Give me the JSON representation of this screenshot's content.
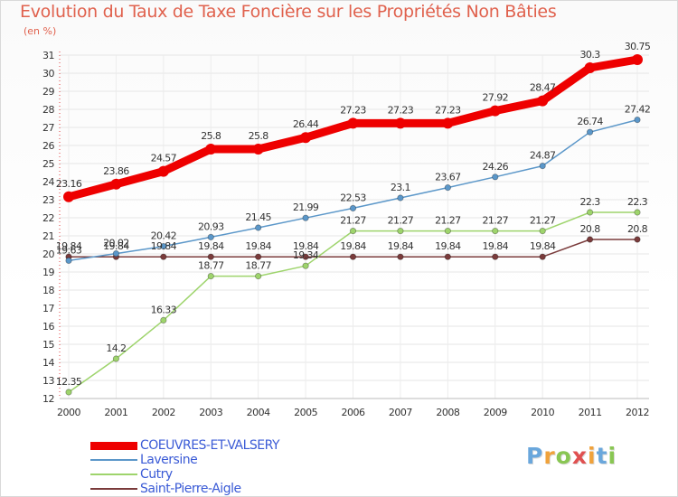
{
  "title": "Evolution du Taux de Taxe Foncière sur les Propriétés Non Bâties",
  "unit_label": "(en %)",
  "logo": {
    "text": "Proxiti",
    "letters": [
      "P",
      "r",
      "o",
      "x",
      "i",
      "t",
      "i"
    ],
    "colors": [
      "#6aa7dc",
      "#f0a23b",
      "#89c653",
      "#e05050",
      "#f0a23b",
      "#6aa7dc",
      "#89c653"
    ]
  },
  "chart_data": {
    "type": "line",
    "title": "Evolution du Taux de Taxe Foncière sur les Propriétés Non Bâties",
    "ylabel": "(en %)",
    "xlabel": "",
    "categories": [
      "2000",
      "2001",
      "2002",
      "2003",
      "2004",
      "2005",
      "2006",
      "2007",
      "2008",
      "2009",
      "2010",
      "2011",
      "2012"
    ],
    "ylim": [
      12,
      31
    ],
    "yticks": [
      12,
      13,
      14,
      15,
      16,
      17,
      18,
      19,
      20,
      21,
      22,
      23,
      24,
      25,
      26,
      27,
      28,
      29,
      30,
      31
    ],
    "grid": true,
    "series": [
      {
        "name": "COEUVRES-ET-VALSERY",
        "color": "#ee0000",
        "weight": "bold",
        "values": [
          23.16,
          23.86,
          24.57,
          25.8,
          25.8,
          26.44,
          27.23,
          27.23,
          27.23,
          27.92,
          28.47,
          30.3,
          30.75
        ],
        "labels": [
          "23.16",
          "23.86",
          "24.57",
          "25.8",
          "25.8",
          "26.44",
          "27.23",
          "27.23",
          "27.23",
          "27.92",
          "28.47",
          "30.3",
          "30.75"
        ]
      },
      {
        "name": "Laversine",
        "color": "#5b97c9",
        "weight": "thin",
        "values": [
          19.63,
          20.02,
          20.42,
          20.93,
          21.45,
          21.99,
          22.53,
          23.1,
          23.67,
          24.26,
          24.87,
          26.74,
          27.42
        ],
        "labels": [
          "19.63",
          "20.02",
          "20.42",
          "20.93",
          "21.45",
          "21.99",
          "22.53",
          "23.1",
          "23.67",
          "24.26",
          "24.87",
          "26.74",
          "27.42"
        ]
      },
      {
        "name": "Cutry",
        "color": "#9ed46c",
        "weight": "thin",
        "values": [
          12.35,
          14.2,
          16.33,
          18.77,
          18.77,
          19.34,
          21.27,
          21.27,
          21.27,
          21.27,
          21.27,
          22.3,
          22.3
        ],
        "labels": [
          "12.35",
          "14.2",
          "16.33",
          "18.77",
          "18.77",
          "19.34",
          "21.27",
          "21.27",
          "21.27",
          "21.27",
          "21.27",
          "22.3",
          "22.3"
        ]
      },
      {
        "name": "Saint-Pierre-Aigle",
        "color": "#7a3b3b",
        "weight": "thin",
        "values": [
          19.84,
          19.84,
          19.84,
          19.84,
          19.84,
          19.84,
          19.84,
          19.84,
          19.84,
          19.84,
          19.84,
          20.8,
          20.8
        ],
        "labels": [
          "19.84",
          "19.84",
          "19.84",
          "19.84",
          "19.84",
          "19.84",
          "19.84",
          "19.84",
          "19.84",
          "19.84",
          "19.84",
          "20.8",
          "20.8"
        ]
      }
    ]
  }
}
